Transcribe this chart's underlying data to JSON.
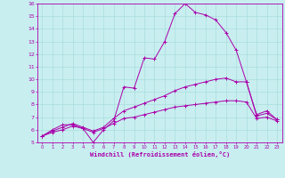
{
  "xlabel": "Windchill (Refroidissement éolien,°C)",
  "bg_color": "#c8eef0",
  "line_color": "#aa00aa",
  "xlim": [
    -0.5,
    23.5
  ],
  "ylim": [
    5,
    16
  ],
  "xticks": [
    0,
    1,
    2,
    3,
    4,
    5,
    6,
    7,
    8,
    9,
    10,
    11,
    12,
    13,
    14,
    15,
    16,
    17,
    18,
    19,
    20,
    21,
    22,
    23
  ],
  "yticks": [
    5,
    6,
    7,
    8,
    9,
    10,
    11,
    12,
    13,
    14,
    15,
    16
  ],
  "grid_color": "#aadddd",
  "line1_x": [
    0,
    1,
    2,
    3,
    4,
    5,
    6,
    7,
    8,
    9,
    10,
    11,
    12,
    13,
    14,
    15,
    16,
    17,
    18,
    19,
    20,
    21,
    22,
    23
  ],
  "line1_y": [
    5.5,
    6.0,
    6.4,
    6.4,
    6.1,
    5.0,
    6.0,
    6.7,
    9.4,
    9.3,
    11.7,
    11.6,
    13.0,
    15.2,
    16.0,
    15.3,
    15.1,
    14.7,
    13.7,
    12.3,
    9.8,
    7.2,
    7.5,
    6.8
  ],
  "line2_x": [
    0,
    1,
    2,
    3,
    4,
    5,
    6,
    7,
    8,
    9,
    10,
    11,
    12,
    13,
    14,
    15,
    16,
    17,
    18,
    19,
    20,
    21,
    22,
    23
  ],
  "line2_y": [
    5.5,
    5.9,
    6.2,
    6.5,
    6.2,
    5.9,
    6.2,
    6.9,
    7.5,
    7.8,
    8.1,
    8.4,
    8.7,
    9.1,
    9.4,
    9.6,
    9.8,
    10.0,
    10.1,
    9.8,
    9.8,
    7.1,
    7.3,
    6.8
  ],
  "line3_x": [
    0,
    1,
    2,
    3,
    4,
    5,
    6,
    7,
    8,
    9,
    10,
    11,
    12,
    13,
    14,
    15,
    16,
    17,
    18,
    19,
    20,
    21,
    22,
    23
  ],
  "line3_y": [
    5.5,
    5.8,
    6.0,
    6.3,
    6.1,
    5.8,
    6.1,
    6.5,
    6.9,
    7.0,
    7.2,
    7.4,
    7.6,
    7.8,
    7.9,
    8.0,
    8.1,
    8.2,
    8.3,
    8.3,
    8.2,
    6.9,
    7.0,
    6.7
  ]
}
